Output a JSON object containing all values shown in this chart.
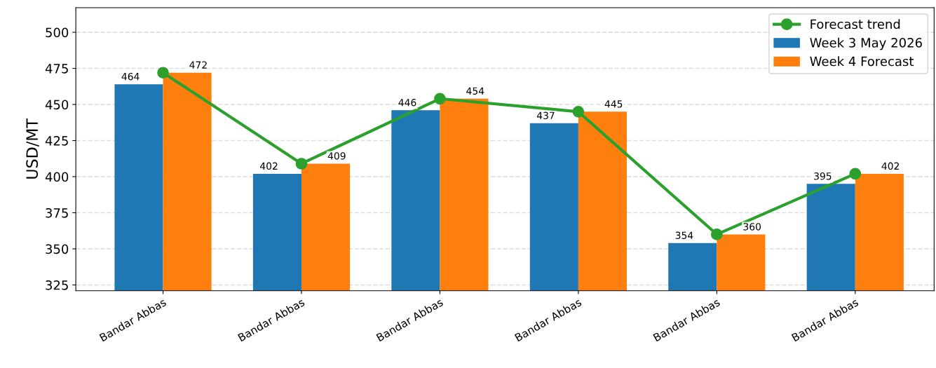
{
  "chart_data": {
    "type": "bar",
    "ylabel": "USD/MT",
    "categories": [
      "Bandar Abbas",
      "Bandar Abbas",
      "Bandar Abbas",
      "Bandar Abbas",
      "Bandar Abbas",
      "Bandar Abbas"
    ],
    "series": [
      {
        "name": "Week 3 May 2026",
        "color": "#1f77b4",
        "values": [
          464,
          402,
          446,
          437,
          354,
          395
        ],
        "value_labels": [
          "464",
          "402",
          "446",
          "437",
          "354",
          "395"
        ]
      },
      {
        "name": "Week 4 Forecast",
        "color": "#ff7f0e",
        "values": [
          472,
          409,
          454,
          445,
          360,
          402
        ],
        "value_labels": [
          "472",
          "409",
          "454",
          "445",
          "360",
          "402"
        ]
      },
      {
        "name": "Forecast trend",
        "type": "line",
        "color": "#2ca02c",
        "values": [
          472,
          409,
          454,
          445,
          360,
          402
        ],
        "marker": "circle",
        "line_style": "solid"
      }
    ],
    "ylim": [
      321,
      517
    ],
    "yticks": [
      325,
      350,
      375,
      400,
      425,
      450,
      475,
      500
    ],
    "grid": "y",
    "legend": "top right"
  }
}
